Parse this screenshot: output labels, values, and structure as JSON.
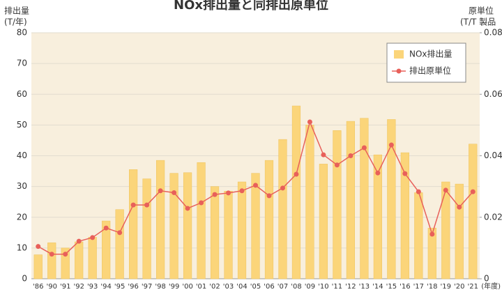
{
  "chart_data": {
    "type": "bar_line",
    "title": "NOx排出量と同排出原単位",
    "ylabel": [
      "排出量",
      "(T/年)"
    ],
    "y2label": [
      "原単位",
      "(T/T 製品"
    ],
    "xlabel": "(年度)",
    "categories": [
      "'86",
      "'90",
      "'91",
      "'92",
      "'93",
      "'94",
      "'95",
      "'96",
      "'97",
      "'98",
      "'99",
      "'00",
      "'01",
      "'02",
      "'03",
      "'04",
      "'05",
      "'06",
      "'07",
      "'08",
      "'09",
      "'10",
      "'11",
      "'12",
      "'13",
      "'14",
      "'15",
      "'16",
      "'17",
      "'18",
      "'19",
      "'20",
      "'21"
    ],
    "series": [
      {
        "name": "NOx排出量",
        "color": "#fbd57a",
        "type": "bar",
        "axis": "y",
        "values": [
          7.8,
          11.7,
          10,
          12,
          13.5,
          18.8,
          22.5,
          35.5,
          32.5,
          38.5,
          34.3,
          34.5,
          37.8,
          30,
          28.5,
          31.5,
          34.3,
          38.5,
          45.3,
          56.2,
          50,
          37.3,
          48.2,
          51.2,
          52.2,
          40.3,
          51.8,
          41,
          28,
          16.5,
          31.5,
          30.8,
          43.8
        ]
      },
      {
        "name": "排出原単位",
        "color": "#e8605a",
        "type": "line",
        "axis": "y2",
        "values": [
          0.0105,
          0.008,
          0.008,
          0.0122,
          0.0134,
          0.0165,
          0.015,
          0.024,
          0.024,
          0.0286,
          0.028,
          0.0229,
          0.0247,
          0.0274,
          0.0279,
          0.0286,
          0.0304,
          0.027,
          0.0295,
          0.034,
          0.051,
          0.0403,
          0.037,
          0.04,
          0.0426,
          0.0344,
          0.0435,
          0.0342,
          0.0283,
          0.0145,
          0.0288,
          0.0233,
          0.0283
        ]
      }
    ],
    "ylim": [
      0,
      80
    ],
    "yticks": [
      0,
      10,
      20,
      30,
      40,
      50,
      60,
      70,
      80
    ],
    "y2lim": [
      0,
      0.08
    ],
    "y2ticks": [
      0,
      0.02,
      0.04,
      0.06,
      0.08
    ],
    "grid": true,
    "legend": "upper right"
  }
}
